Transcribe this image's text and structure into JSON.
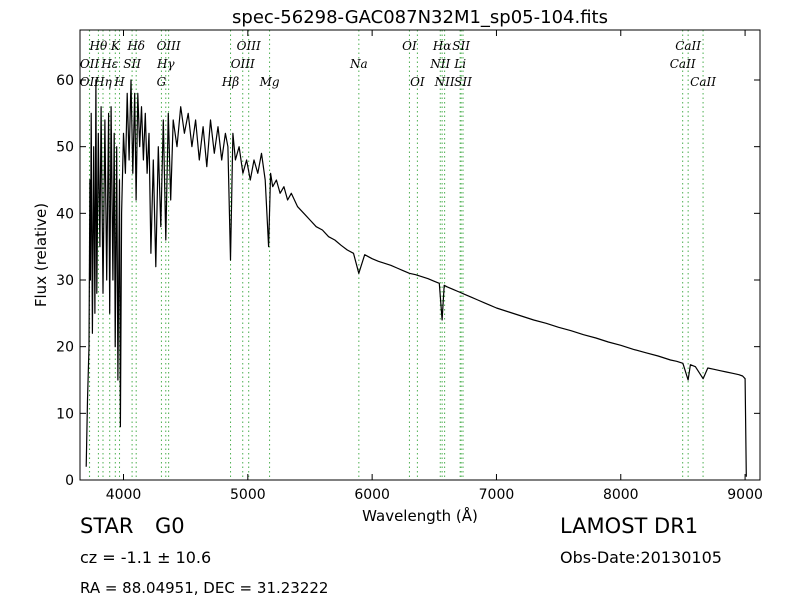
{
  "chart_data": {
    "type": "line",
    "title": "spec-56298-GAC087N32M1_sp05-104.fits",
    "xlabel": "Wavelength (Å)",
    "ylabel": "Flux (relative)",
    "xlim": [
      3650,
      9120
    ],
    "ylim": [
      0,
      67.5
    ],
    "xticks": [
      4000,
      5000,
      6000,
      7000,
      8000,
      9000
    ],
    "yticks": [
      0,
      10,
      20,
      30,
      40,
      50,
      60
    ],
    "grid": false,
    "line_color": "#000000",
    "marker_color": "#4caf50",
    "series": [
      {
        "x": [
          3700,
          3710,
          3722,
          3730,
          3734,
          3740,
          3750,
          3760,
          3770,
          3778,
          3785,
          3797,
          3810,
          3820,
          3835,
          3850,
          3865,
          3880,
          3889,
          3900,
          3915,
          3925,
          3933,
          3945,
          3955,
          3968,
          3975,
          3985,
          4000,
          4015,
          4030,
          4045,
          4060,
          4075,
          4090,
          4101,
          4115,
          4130,
          4145,
          4160,
          4175,
          4190,
          4205,
          4220,
          4240,
          4260,
          4280,
          4300,
          4320,
          4340,
          4360,
          4380,
          4400,
          4430,
          4460,
          4490,
          4520,
          4550,
          4580,
          4610,
          4640,
          4670,
          4700,
          4730,
          4760,
          4790,
          4820,
          4840,
          4861,
          4880,
          4900,
          4930,
          4960,
          4990,
          5020,
          5050,
          5080,
          5110,
          5140,
          5167,
          5183,
          5200,
          5230,
          5260,
          5290,
          5320,
          5350,
          5400,
          5450,
          5500,
          5550,
          5600,
          5650,
          5700,
          5750,
          5800,
          5850,
          5893,
          5940,
          6000,
          6050,
          6100,
          6150,
          6200,
          6250,
          6300,
          6350,
          6400,
          6450,
          6500,
          6540,
          6563,
          6580,
          6600,
          6650,
          6700,
          6750,
          6800,
          6850,
          6900,
          6950,
          7000,
          7100,
          7200,
          7300,
          7400,
          7500,
          7600,
          7700,
          7800,
          7900,
          8000,
          8100,
          8200,
          8300,
          8400,
          8450,
          8500,
          8542,
          8560,
          8600,
          8662,
          8700,
          8750,
          8800,
          8850,
          8900,
          8950,
          8980,
          9000,
          9010
        ],
        "y": [
          2,
          12,
          20,
          45,
          30,
          55,
          22,
          50,
          25,
          60,
          28,
          52,
          35,
          56,
          28,
          54,
          30,
          55,
          25,
          56,
          30,
          52,
          20,
          50,
          15,
          45,
          8,
          40,
          52,
          46,
          58,
          48,
          60,
          46,
          58,
          42,
          58,
          50,
          56,
          48,
          55,
          46,
          52,
          34,
          48,
          32,
          50,
          38,
          54,
          36,
          55,
          42,
          54,
          50,
          56,
          52,
          55,
          50,
          54,
          48,
          53,
          47,
          54,
          49,
          53,
          48,
          52,
          50,
          33,
          52,
          48,
          50,
          46,
          48,
          45,
          48,
          46,
          49,
          45,
          35,
          46,
          44,
          45,
          43,
          44,
          42,
          43,
          41,
          40,
          39,
          38,
          37.5,
          36.5,
          36,
          35.2,
          34.5,
          34,
          31,
          33.8,
          33.2,
          32.8,
          32.5,
          32.2,
          31.8,
          31.4,
          31,
          30.8,
          30.5,
          30.2,
          29.8,
          29.5,
          24,
          29.2,
          29,
          28.6,
          28.2,
          27.8,
          27.4,
          27,
          26.6,
          26.2,
          25.8,
          25.2,
          24.6,
          24,
          23.5,
          22.9,
          22.4,
          21.8,
          21.3,
          20.7,
          20.2,
          19.6,
          19.1,
          18.6,
          18,
          17.8,
          17.5,
          15,
          17.3,
          17,
          15.2,
          16.8,
          16.6,
          16.4,
          16.2,
          16,
          15.8,
          15.6,
          15.2,
          0.5
        ]
      }
    ],
    "lines_top": [
      {
        "label": "Hθ",
        "x": 3798,
        "row": 1
      },
      {
        "label": "K",
        "x": 3934,
        "row": 1
      },
      {
        "label": "Hδ",
        "x": 4102,
        "row": 1
      },
      {
        "label": "OIII",
        "x": 4363,
        "row": 1
      },
      {
        "label": "OIII",
        "x": 5007,
        "row": 1
      },
      {
        "label": "OI",
        "x": 6300,
        "row": 1
      },
      {
        "label": "Hα",
        "x": 6563,
        "row": 1
      },
      {
        "label": "SII",
        "x": 6716,
        "row": 1
      },
      {
        "label": "CaII",
        "x": 8542,
        "row": 1
      },
      {
        "label": "OII",
        "x": 3727,
        "row": 2
      },
      {
        "label": "Hε",
        "x": 3889,
        "row": 2
      },
      {
        "label": "SII",
        "x": 4069,
        "row": 2
      },
      {
        "label": "Hγ",
        "x": 4340,
        "row": 2
      },
      {
        "label": "OIII",
        "x": 4959,
        "row": 2
      },
      {
        "label": "Na",
        "x": 5893,
        "row": 2
      },
      {
        "label": "NII",
        "x": 6548,
        "row": 2
      },
      {
        "label": "Li",
        "x": 6708,
        "row": 2
      },
      {
        "label": "CaII",
        "x": 8498,
        "row": 2
      },
      {
        "label": "OII",
        "x": 3726,
        "row": 3
      },
      {
        "label": "Hη",
        "x": 3835,
        "row": 3
      },
      {
        "label": "H",
        "x": 3968,
        "row": 3
      },
      {
        "label": "G",
        "x": 4305,
        "row": 3
      },
      {
        "label": "Hβ",
        "x": 4861,
        "row": 3
      },
      {
        "label": "Mg",
        "x": 5175,
        "row": 3
      },
      {
        "label": "OI",
        "x": 6364,
        "row": 3
      },
      {
        "label": "NII",
        "x": 6583,
        "row": 3
      },
      {
        "label": "SII",
        "x": 6731,
        "row": 3
      },
      {
        "label": "CaII",
        "x": 8662,
        "row": 3
      }
    ]
  },
  "info": {
    "class_label": "STAR",
    "subclass": "G0",
    "redshift": "cz = -1.1  ± 10.6",
    "coords": "RA = 88.04951, DEC = 31.23222",
    "survey": "LAMOST DR1",
    "obs_date": "Obs-Date:20130105"
  }
}
